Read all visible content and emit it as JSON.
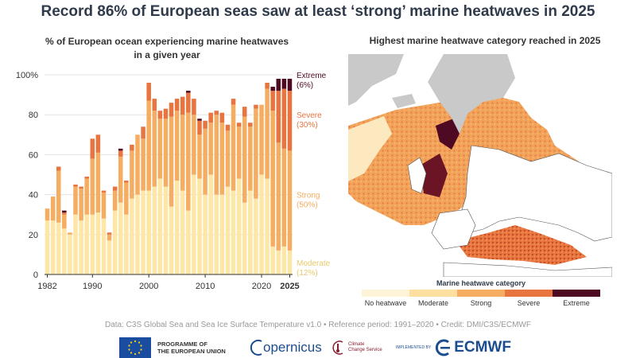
{
  "title": "Record 86% of European seas saw at least ‘strong’ marine heatwaves in 2025",
  "chart_data": {
    "type": "bar",
    "stacked": true,
    "title_line1": "% of European ocean experiencing marine heatwaves",
    "title_line2": "in a given year",
    "categories": [
      1982,
      1983,
      1984,
      1985,
      1986,
      1987,
      1988,
      1989,
      1990,
      1991,
      1992,
      1993,
      1994,
      1995,
      1996,
      1997,
      1998,
      1999,
      2000,
      2001,
      2002,
      2003,
      2004,
      2005,
      2006,
      2007,
      2008,
      2009,
      2010,
      2011,
      2012,
      2013,
      2014,
      2015,
      2016,
      2017,
      2018,
      2019,
      2020,
      2021,
      2022,
      2023,
      2024,
      2025
    ],
    "series": [
      {
        "name": "Moderate",
        "color": "#fde6a6",
        "values": [
          27,
          27,
          26,
          23,
          20,
          30,
          27,
          30,
          30,
          31,
          28,
          17,
          32,
          36,
          30,
          38,
          40,
          42,
          42,
          44,
          48,
          44,
          34,
          47,
          42,
          32,
          50,
          48,
          40,
          50,
          40,
          40,
          44,
          42,
          48,
          36,
          42,
          38,
          50,
          48,
          14,
          12,
          14,
          12
        ]
      },
      {
        "name": "Strong",
        "color": "#f5ad62",
        "values": [
          6,
          12,
          26,
          7,
          1,
          14,
          16,
          18,
          28,
          30,
          13,
          3,
          10,
          23,
          16,
          24,
          30,
          26,
          45,
          38,
          30,
          34,
          45,
          35,
          38,
          49,
          30,
          22,
          33,
          26,
          40,
          36,
          28,
          43,
          26,
          43,
          32,
          45,
          35,
          45,
          68,
          54,
          49,
          50
        ]
      },
      {
        "name": "Severe",
        "color": "#e87440",
        "values": [
          0,
          0,
          2,
          1,
          0,
          1,
          1,
          1,
          10,
          9,
          1,
          1,
          2,
          3,
          1,
          3,
          0,
          6,
          9,
          6,
          4,
          5,
          7,
          6,
          9,
          10,
          8,
          7,
          4,
          5,
          2,
          5,
          3,
          3,
          2,
          5,
          2,
          2,
          0,
          3,
          10,
          26,
          30,
          30
        ]
      },
      {
        "name": "Extreme",
        "color": "#4e0a22",
        "values": [
          0,
          0,
          0,
          1,
          0,
          0,
          0,
          0,
          0,
          0,
          0,
          0,
          0,
          1,
          0,
          0,
          0,
          0,
          0,
          0,
          0,
          0,
          0,
          0,
          0,
          1,
          0,
          1,
          0,
          0,
          0,
          0,
          0,
          0,
          0,
          0,
          0,
          0,
          0,
          0,
          2,
          6,
          5,
          6
        ]
      }
    ],
    "ylim": [
      0,
      100
    ],
    "yticks": [
      "0",
      "20",
      "40",
      "60",
      "80",
      "100%"
    ],
    "xticks": [
      "1982",
      "1990",
      "2000",
      "2010",
      "2020",
      "2025"
    ],
    "annotations": [
      {
        "label": "Extreme",
        "value": "(6%)",
        "color": "#4e0a22"
      },
      {
        "label": "Severe",
        "value": "(30%)",
        "color": "#e87440"
      },
      {
        "label": "Strong",
        "value": "(50%)",
        "color": "#f5ad62"
      },
      {
        "label": "Moderate",
        "value": "(12%)",
        "color": "#e8c96a"
      }
    ]
  },
  "map": {
    "title": "Highest marine heatwave category reached in 2025",
    "legend_title": "Marine heatwave category",
    "legend": [
      {
        "label": "No heatwave",
        "color": "#fdf3d6"
      },
      {
        "label": "Moderate",
        "color": "#fde0a0"
      },
      {
        "label": "Strong",
        "color": "#f5ad62"
      },
      {
        "label": "Severe",
        "color": "#e87440"
      },
      {
        "label": "Extreme",
        "color": "#4e0a22"
      }
    ]
  },
  "source": "Data: C3S Global Sea and Sea Ice Surface Temperature v1.0 • Reference period: 1991–2020 • Credit: DMI/C3S/ECMWF",
  "logos": {
    "eu_line1": "PROGRAMME OF",
    "eu_line2": "THE EUROPEAN UNION",
    "copernicus": "opernicus",
    "c3s_line1": "Climate",
    "c3s_line2": "Change Service",
    "implemented_by": "IMPLEMENTED BY",
    "ecmwf": "ECMWF"
  }
}
